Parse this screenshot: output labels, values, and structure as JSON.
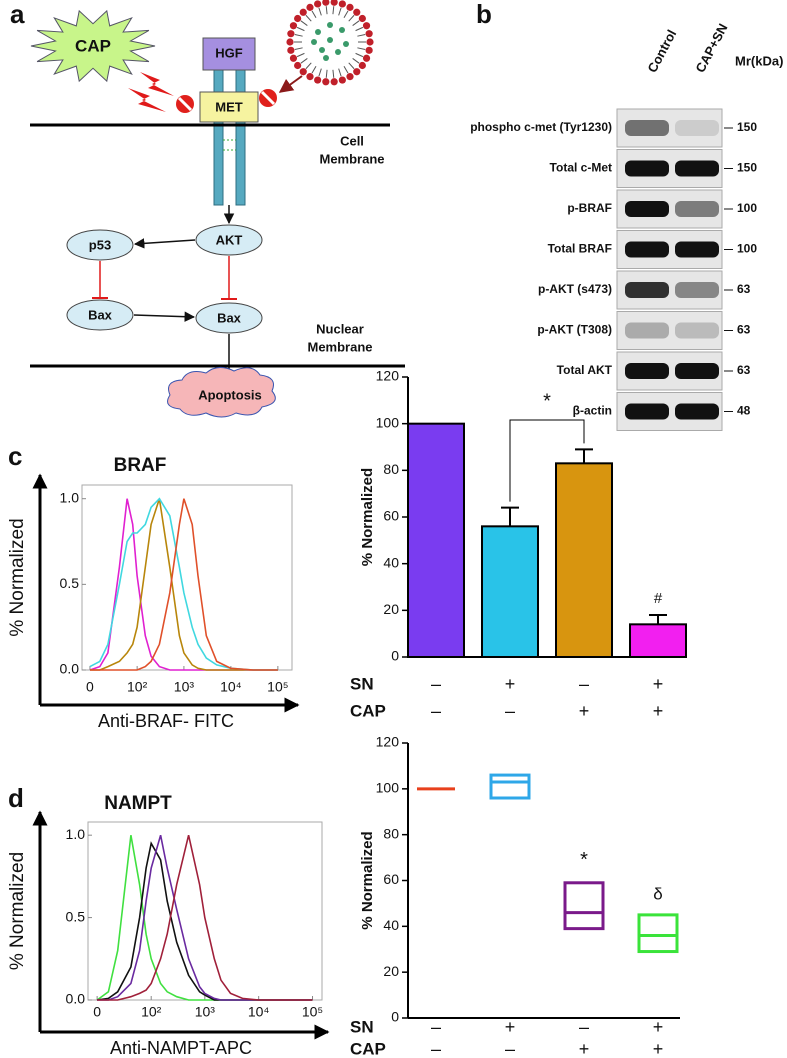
{
  "panel_labels": [
    "a",
    "b",
    "c",
    "d"
  ],
  "diagram": {
    "cap": "CAP",
    "hgf": "HGF",
    "met": "MET",
    "cell_membrane": [
      "Cell",
      "Membrane"
    ],
    "akt": "AKT",
    "p53": "p53",
    "bax_left": "Bax",
    "bax_right": "Bax",
    "nuclear_membrane": [
      "Nuclear",
      "Membrane"
    ],
    "apoptosis": "Apoptosis"
  },
  "blot": {
    "columns": [
      "Control",
      "CAP+SN"
    ],
    "mw_header": "Mr(kDa)",
    "rows": [
      {
        "label": "phospho c-met (Tyr1230)",
        "mw": 150
      },
      {
        "label": "Total c-Met",
        "mw": 150
      },
      {
        "label": "p-BRAF",
        "mw": 100
      },
      {
        "label": "Total BRAF",
        "mw": 100
      },
      {
        "label": "p-AKT (s473)",
        "mw": 63
      },
      {
        "label": "p-AKT (T308)",
        "mw": 63
      },
      {
        "label": "Total AKT",
        "mw": 63
      },
      {
        "label": "β-actin",
        "mw": 48
      }
    ]
  },
  "chart_data": [
    {
      "type": "line",
      "title": "BRAF",
      "xlabel": "Anti-BRAF- FITC",
      "ylabel": "% Normalized",
      "xscale": "biexponential",
      "x": [
        0,
        10,
        20,
        40,
        60,
        80,
        100,
        150,
        200,
        300,
        500,
        800,
        1000,
        1500,
        2000,
        3000,
        5000,
        10000,
        30000,
        100000
      ],
      "series": [
        {
          "color": "#e020d0",
          "values": [
            0,
            0.02,
            0.1,
            0.6,
            1.0,
            0.85,
            0.55,
            0.2,
            0.08,
            0.02,
            0,
            0,
            0,
            0,
            0,
            0,
            0,
            0,
            0,
            0
          ]
        },
        {
          "color": "#b8860b",
          "values": [
            0,
            0,
            0.02,
            0.05,
            0.1,
            0.15,
            0.25,
            0.6,
            0.85,
            1.0,
            0.6,
            0.2,
            0.1,
            0.03,
            0.01,
            0,
            0,
            0,
            0,
            0
          ]
        },
        {
          "color": "#40d8e0",
          "values": [
            0.02,
            0.05,
            0.15,
            0.5,
            0.75,
            0.8,
            0.8,
            0.85,
            0.95,
            1.0,
            0.9,
            0.6,
            0.45,
            0.25,
            0.15,
            0.07,
            0.03,
            0.01,
            0,
            0
          ]
        },
        {
          "color": "#e0502a",
          "values": [
            0,
            0,
            0,
            0,
            0,
            0,
            0,
            0.02,
            0.05,
            0.15,
            0.45,
            0.85,
            1.0,
            0.85,
            0.55,
            0.2,
            0.05,
            0.01,
            0,
            0
          ]
        }
      ],
      "xlim": [
        -8,
        200000
      ],
      "xticks": [
        0,
        {
          "value": 100,
          "label": "10²"
        },
        {
          "value": 1000,
          "label": "10³"
        },
        {
          "value": 10000,
          "label": "10⁴"
        },
        {
          "value": 100000,
          "label": "10⁵"
        }
      ],
      "ylim": [
        0,
        1.08
      ],
      "yticks": [
        {
          "value": 0,
          "label": "0.0"
        },
        {
          "value": 0.5,
          "label": "0.5"
        },
        {
          "value": 1,
          "label": "1.0"
        }
      ]
    },
    {
      "type": "bar",
      "ylabel": "% Normalized",
      "categories": [
        null,
        null,
        null,
        null
      ],
      "values": [
        100,
        56,
        83,
        14
      ],
      "errors": [
        null,
        8,
        6,
        4
      ],
      "colors": [
        "#7a3cf0",
        "#29c3e8",
        "#d8950f",
        "#f21ff0"
      ],
      "ylim": [
        0,
        120
      ],
      "yticks": [
        0,
        20,
        40,
        60,
        80,
        100,
        120
      ],
      "annotations": [
        "*",
        "#"
      ],
      "conditions": [
        {
          "name": "SN",
          "signs": [
            "–",
            "+",
            "–",
            "+"
          ]
        },
        {
          "name": "CAP",
          "signs": [
            "–",
            "–",
            "+",
            "+"
          ]
        }
      ]
    },
    {
      "type": "line",
      "title": "NAMPT",
      "xlabel": "Anti-NAMPT-APC",
      "ylabel": "% Normalized",
      "xscale": "biexponential",
      "x": [
        0,
        10,
        20,
        40,
        60,
        80,
        100,
        150,
        200,
        300,
        500,
        800,
        1000,
        1500,
        2000,
        3000,
        5000,
        10000,
        30000,
        100000
      ],
      "series": [
        {
          "color": "#40e040",
          "values": [
            0,
            0.05,
            0.3,
            1.0,
            0.7,
            0.4,
            0.25,
            0.1,
            0.05,
            0.02,
            0,
            0,
            0,
            0,
            0,
            0,
            0,
            0,
            0,
            0
          ]
        },
        {
          "color": "#111111",
          "values": [
            0,
            0.01,
            0.05,
            0.2,
            0.5,
            0.8,
            0.95,
            0.85,
            0.6,
            0.35,
            0.15,
            0.05,
            0.03,
            0,
            0,
            0,
            0,
            0,
            0,
            0
          ]
        },
        {
          "color": "#6a2aa0",
          "values": [
            0,
            0,
            0.02,
            0.1,
            0.3,
            0.6,
            0.8,
            1.0,
            0.8,
            0.55,
            0.25,
            0.08,
            0.04,
            0.01,
            0,
            0,
            0,
            0,
            0,
            0
          ]
        },
        {
          "color": "#a0203a",
          "values": [
            0,
            0,
            0,
            0.02,
            0.04,
            0.06,
            0.1,
            0.25,
            0.4,
            0.7,
            1.0,
            0.7,
            0.5,
            0.25,
            0.12,
            0.04,
            0.01,
            0,
            0,
            0
          ]
        }
      ],
      "xlim": [
        -8,
        150000
      ],
      "xticks": [
        0,
        {
          "value": 100,
          "label": "10²"
        },
        {
          "value": 1000,
          "label": "10³"
        },
        {
          "value": 10000,
          "label": "10⁴"
        },
        {
          "value": 100000,
          "label": "10⁵"
        }
      ],
      "ylim": [
        0,
        1.08
      ],
      "yticks": [
        {
          "value": 0,
          "label": "0.0"
        },
        {
          "value": 0.5,
          "label": "0.5"
        },
        {
          "value": 1,
          "label": "1.0"
        }
      ]
    },
    {
      "type": "box",
      "ylabel": "% Normalized",
      "categories": [
        null,
        null,
        null,
        null
      ],
      "low": [
        100,
        96,
        39,
        29
      ],
      "median": [
        100,
        103,
        46,
        36
      ],
      "high": [
        100,
        106,
        59,
        45
      ],
      "colors": [
        "#e8401c",
        "#2ea7e8",
        "#7a1a8a",
        "#3ae33a"
      ],
      "ylim": [
        0,
        120
      ],
      "yticks": [
        0,
        20,
        40,
        60,
        80,
        100,
        120
      ],
      "annotations": [
        "*",
        "δ"
      ],
      "conditions": [
        {
          "name": "SN",
          "signs": [
            "–",
            "+",
            "–",
            "+"
          ]
        },
        {
          "name": "CAP",
          "signs": [
            "–",
            "–",
            "+",
            "+"
          ]
        }
      ]
    }
  ]
}
